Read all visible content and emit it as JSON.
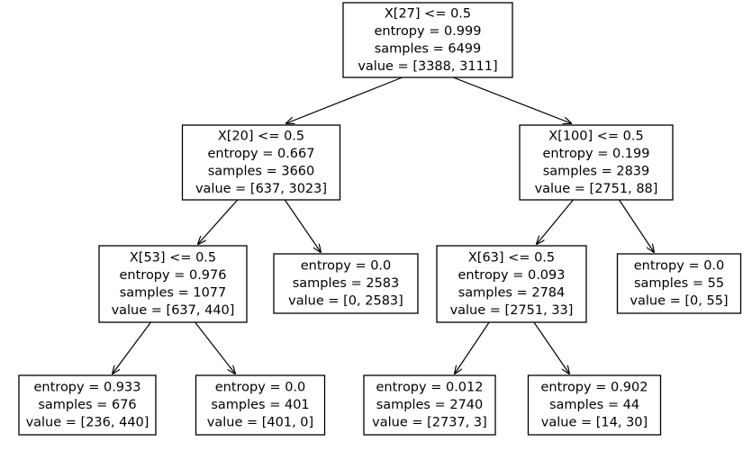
{
  "tree": {
    "nodes": [
      {
        "id": "n0",
        "lines": [
          "X[27] <= 0.5",
          "entropy = 0.999",
          "samples = 6499",
          "value = [3388, 3111]"
        ]
      },
      {
        "id": "n1",
        "lines": [
          "X[20] <= 0.5",
          "entropy = 0.667",
          "samples = 3660",
          "value = [637, 3023]"
        ]
      },
      {
        "id": "n2",
        "lines": [
          "X[100] <= 0.5",
          "entropy = 0.199",
          "samples = 2839",
          "value = [2751, 88]"
        ]
      },
      {
        "id": "n3",
        "lines": [
          "X[53] <= 0.5",
          "entropy = 0.976",
          "samples = 1077",
          "value = [637, 440]"
        ]
      },
      {
        "id": "n4",
        "lines": [
          "entropy = 0.0",
          "samples = 2583",
          "value = [0, 2583]"
        ]
      },
      {
        "id": "n5",
        "lines": [
          "X[63] <= 0.5",
          "entropy = 0.093",
          "samples = 2784",
          "value = [2751, 33]"
        ]
      },
      {
        "id": "n6",
        "lines": [
          "entropy = 0.0",
          "samples = 55",
          "value = [0, 55]"
        ]
      },
      {
        "id": "n7",
        "lines": [
          "entropy = 0.933",
          "samples = 676",
          "value = [236, 440]"
        ]
      },
      {
        "id": "n8",
        "lines": [
          "entropy = 0.0",
          "samples = 401",
          "value = [401, 0]"
        ]
      },
      {
        "id": "n9",
        "lines": [
          "entropy = 0.012",
          "samples = 2740",
          "value = [2737, 3]"
        ]
      },
      {
        "id": "n10",
        "lines": [
          "entropy = 0.902",
          "samples = 44",
          "value = [14, 30]"
        ]
      }
    ],
    "edges": [
      [
        "n0",
        "n1"
      ],
      [
        "n0",
        "n2"
      ],
      [
        "n1",
        "n3"
      ],
      [
        "n1",
        "n4"
      ],
      [
        "n2",
        "n5"
      ],
      [
        "n2",
        "n6"
      ],
      [
        "n3",
        "n7"
      ],
      [
        "n3",
        "n8"
      ],
      [
        "n5",
        "n9"
      ],
      [
        "n5",
        "n10"
      ]
    ]
  }
}
